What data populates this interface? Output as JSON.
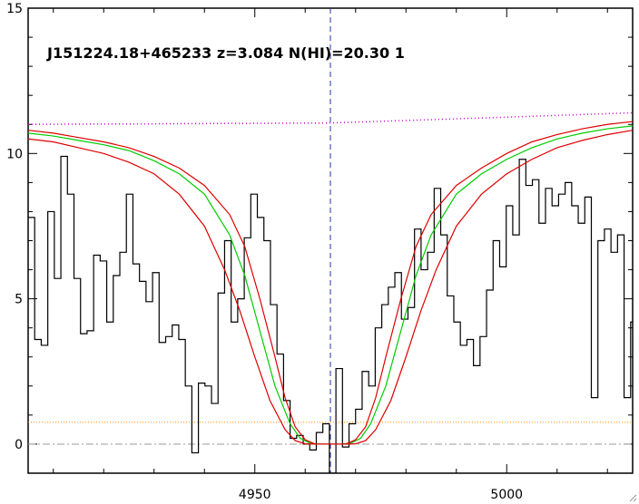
{
  "chart_data": {
    "type": "line",
    "title": "J151224.18+465233 z=3.084 N(HI)=20.30 1",
    "xlabel": "",
    "ylabel": "",
    "xlim": [
      4905,
      5025
    ],
    "ylim": [
      -1,
      15
    ],
    "x_ticks": [
      4950,
      5000
    ],
    "x_tick_labels": [
      "4950",
      "5000"
    ],
    "y_ticks": [
      0,
      5,
      10,
      15
    ],
    "y_tick_labels": [
      "0",
      "5",
      "10",
      "15"
    ],
    "grid": false,
    "legend": "none",
    "line_center": 4965,
    "continuum": {
      "x": [
        4905,
        4965,
        5000,
        5025
      ],
      "y": [
        11.0,
        11.05,
        11.25,
        11.4
      ]
    },
    "error_level": 0.75,
    "zero_level": 0,
    "flux_steps": {
      "x": [
        4905,
        4906.3,
        4907.6,
        4908.9,
        4910.2,
        4911.5,
        4912.8,
        4914.1,
        4915.4,
        4916.7,
        4918.0,
        4919.3,
        4920.6,
        4921.9,
        4923.2,
        4924.5,
        4925.8,
        4927.1,
        4928.4,
        4929.7,
        4931.0,
        4932.3,
        4933.6,
        4934.9,
        4936.2,
        4937.5,
        4938.8,
        4940.1,
        4941.4,
        4942.7,
        4944.0,
        4945.3,
        4946.6,
        4947.9,
        4949.2,
        4950.5,
        4951.8,
        4953.1,
        4954.4,
        4955.7,
        4957.0,
        4958.3,
        4959.6,
        4960.9,
        4962.2,
        4963.5,
        4964.8,
        4966.1,
        4967.4,
        4968.7,
        4970.0,
        4971.3,
        4972.6,
        4973.9,
        4975.2,
        4976.5,
        4977.8,
        4979.1,
        4980.4,
        4981.7,
        4983.0,
        4984.3,
        4985.6,
        4986.9,
        4988.2,
        4989.5,
        4990.8,
        4992.1,
        4993.4,
        4994.7,
        4996.0,
        4997.3,
        4998.6,
        4999.9,
        5001.2,
        5002.5,
        5003.8,
        5005.1,
        5006.4,
        5007.7,
        5009.0,
        5010.3,
        5011.6,
        5012.9,
        5014.2,
        5015.5,
        5016.8,
        5018.1,
        5019.4,
        5020.7,
        5022.0,
        5023.3,
        5024.6
      ],
      "y": [
        7.8,
        3.6,
        3.4,
        8.0,
        5.7,
        9.9,
        8.6,
        5.7,
        3.8,
        3.9,
        6.5,
        6.3,
        4.2,
        5.8,
        6.6,
        8.6,
        6.2,
        5.6,
        4.9,
        5.9,
        3.5,
        3.7,
        4.1,
        3.6,
        2.0,
        -0.3,
        2.1,
        2.0,
        1.4,
        5.2,
        7.0,
        4.2,
        5.0,
        7.1,
        8.6,
        7.8,
        7.0,
        4.8,
        3.1,
        1.5,
        0.2,
        0.3,
        0.0,
        -0.2,
        0.4,
        0.7,
        -1.0,
        2.6,
        -0.1,
        0.7,
        1.2,
        2.5,
        2.0,
        4.0,
        4.8,
        5.4,
        5.9,
        4.3,
        4.7,
        7.4,
        6.0,
        6.6,
        8.8,
        7.2,
        5.1,
        4.2,
        3.4,
        3.6,
        2.7,
        3.7,
        5.3,
        7.0,
        6.1,
        8.2,
        7.2,
        9.8,
        8.9,
        9.1,
        7.6,
        8.8,
        8.2,
        8.6,
        9.0,
        8.2,
        7.6,
        8.5,
        1.6,
        7.0,
        7.4,
        6.6,
        7.2,
        1.6,
        4.2
      ]
    },
    "series": [
      {
        "color": "#00cc00",
        "x": [
          4905,
          4910,
          4915,
          4920,
          4925,
          4930,
          4935,
          4940,
          4945,
          4948,
          4951,
          4954,
          4957,
          4959,
          4961,
          4963,
          4965,
          4967,
          4969,
          4971,
          4973,
          4976,
          4979,
          4982,
          4985,
          4990,
          4995,
          5000,
          5005,
          5010,
          5015,
          5020,
          5025
        ],
        "y": [
          10.7,
          10.6,
          10.45,
          10.3,
          10.1,
          9.75,
          9.3,
          8.6,
          7.2,
          5.8,
          3.9,
          2.0,
          0.7,
          0.2,
          0.03,
          0,
          0,
          0,
          0.03,
          0.2,
          0.7,
          2.0,
          3.9,
          5.8,
          7.2,
          8.6,
          9.3,
          9.8,
          10.2,
          10.5,
          10.7,
          10.85,
          10.95
        ]
      },
      {
        "color": "#dd0000",
        "x": [
          4905,
          4910,
          4915,
          4920,
          4925,
          4930,
          4935,
          4940,
          4945,
          4948,
          4951,
          4954,
          4956,
          4958,
          4960,
          4962,
          4965,
          4968,
          4970,
          4972,
          4974,
          4976,
          4979,
          4982,
          4985,
          4990,
          4995,
          5000,
          5005,
          5010,
          5015,
          5020,
          5025
        ],
        "y": [
          10.8,
          10.7,
          10.55,
          10.4,
          10.2,
          9.9,
          9.5,
          8.9,
          7.9,
          6.8,
          5.0,
          3.0,
          1.6,
          0.6,
          0.15,
          0,
          0,
          0,
          0.15,
          0.6,
          1.6,
          3.0,
          5.0,
          6.8,
          7.9,
          8.9,
          9.5,
          10.0,
          10.4,
          10.65,
          10.85,
          11.0,
          11.1
        ]
      },
      {
        "color": "#dd0000",
        "x": [
          4905,
          4910,
          4915,
          4920,
          4925,
          4930,
          4935,
          4940,
          4944,
          4947,
          4950,
          4953,
          4956,
          4958,
          4960,
          4962,
          4965,
          4968,
          4970,
          4972,
          4974,
          4977,
          4980,
          4983,
          4986,
          4990,
          4995,
          5000,
          5005,
          5010,
          5015,
          5020,
          5025
        ],
        "y": [
          10.5,
          10.4,
          10.2,
          10.0,
          9.7,
          9.3,
          8.6,
          7.5,
          6.0,
          4.6,
          3.0,
          1.5,
          0.5,
          0.12,
          0.01,
          0,
          0,
          0,
          0.01,
          0.12,
          0.5,
          1.5,
          3.0,
          4.6,
          6.0,
          7.5,
          8.6,
          9.3,
          9.8,
          10.2,
          10.45,
          10.65,
          10.8
        ]
      }
    ]
  }
}
